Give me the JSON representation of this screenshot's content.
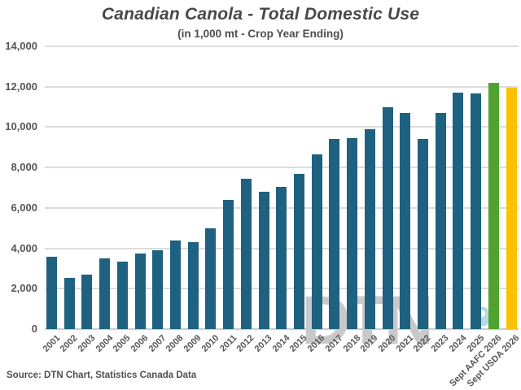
{
  "header": {
    "title": "Canadian Canola - Total Domestic Use",
    "subtitle": "(in 1,000 mt - Crop Year Ending)"
  },
  "footer": {
    "source": "Source: DTN Chart, Statistics Canada Data"
  },
  "watermark": {
    "text": "DTN",
    "gray": "#c9c9c9",
    "blue": "#b7d9e9"
  },
  "colors": {
    "bar_default": "#1f6180",
    "bar_aafc_green": "#4fa32e",
    "bar_usda_yellow": "#fdc101",
    "gridline": "#dcdcdc",
    "axis_text": "#565656",
    "title_text": "#484848"
  },
  "chart_data": {
    "type": "bar",
    "title": "Canadian Canola - Total Domestic Use",
    "subtitle": "(in 1,000 mt - Crop Year Ending)",
    "categories": [
      "2001",
      "2002",
      "2003",
      "2004",
      "2005",
      "2006",
      "2007",
      "2008",
      "2009",
      "2010",
      "2011",
      "2012",
      "2013",
      "2014",
      "2015",
      "2016",
      "2017",
      "2018",
      "2019",
      "2020",
      "2021",
      "2022",
      "2023",
      "2024",
      "2025",
      "Sept AAFC 2026",
      "Sept USDA 2026"
    ],
    "values": [
      3600,
      2550,
      2700,
      3500,
      3350,
      3750,
      3900,
      4400,
      4300,
      5000,
      6400,
      7450,
      6800,
      7050,
      7700,
      8650,
      9400,
      9450,
      9900,
      11000,
      10700,
      9400,
      10700,
      11700,
      11650,
      12200,
      11950
    ],
    "color_default": "#1f6180",
    "color_overrides": {
      "Sept AAFC 2026": "#4fa32e",
      "Sept USDA 2026": "#fdc101"
    },
    "xlabel": "",
    "ylabel": "",
    "ylim": [
      0,
      14000
    ],
    "ytick_interval": 2000,
    "grid": true,
    "legend": false,
    "source_note": "Source: DTN Chart, Statistics Canada Data"
  }
}
